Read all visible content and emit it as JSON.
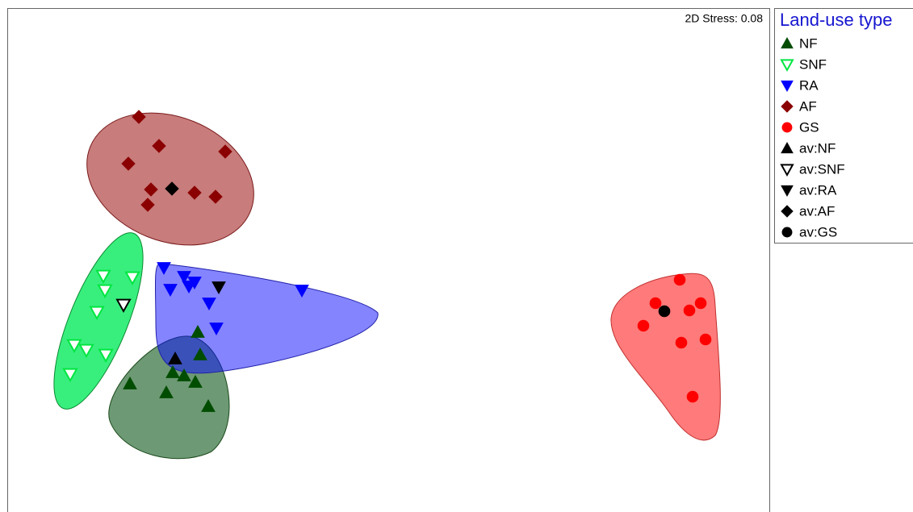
{
  "chart_data": {
    "type": "scatter",
    "stress_label": "2D Stress: 0.08",
    "legend_title": "Land-use type",
    "xlim": [
      0,
      944
    ],
    "ylim": [
      0,
      625
    ],
    "series": [
      {
        "name": "NF",
        "color": "#004d00",
        "marker": "triangle-up",
        "filled": true,
        "x": [
          236,
          239,
          205,
          219,
          233,
          152,
          197,
          249
        ],
        "y": [
          223,
          195,
          173,
          169,
          161,
          159,
          148,
          131
        ]
      },
      {
        "name": "SNF",
        "color": "#00e640",
        "marker": "triangle-down",
        "filled": false,
        "x": [
          119,
          155,
          121,
          111,
          83,
          98,
          122,
          78
        ],
        "y": [
          293,
          291,
          275,
          248,
          207,
          201,
          195,
          171
        ]
      },
      {
        "name": "RA",
        "color": "#0000ff",
        "marker": "triangle-down",
        "filled": true,
        "x": [
          194,
          219,
          232,
          225,
          202,
          365,
          250,
          259
        ],
        "y": [
          303,
          292,
          285,
          280,
          276,
          275,
          259,
          228
        ]
      },
      {
        "name": "AF",
        "color": "#8b0000",
        "marker": "diamond",
        "filled": true,
        "x": [
          163,
          188,
          270,
          150,
          178,
          232,
          258,
          174
        ],
        "y": [
          490,
          454,
          447,
          432,
          400,
          396,
          391,
          381
        ]
      },
      {
        "name": "GS",
        "color": "#ff0000",
        "marker": "circle",
        "filled": true,
        "x": [
          833,
          803,
          859,
          845,
          788,
          835,
          865,
          849
        ],
        "y": [
          288,
          259,
          259,
          250,
          231,
          210,
          214,
          143
        ]
      },
      {
        "name": "av:NF",
        "color": "#000000",
        "marker": "triangle-up",
        "filled": true,
        "x": [
          208
        ],
        "y": [
          190
        ]
      },
      {
        "name": "av:SNF",
        "color": "#000000",
        "marker": "triangle-down",
        "filled": false,
        "x": [
          144
        ],
        "y": [
          257
        ]
      },
      {
        "name": "av:RA",
        "color": "#000000",
        "marker": "triangle-down",
        "filled": true,
        "x": [
          262
        ],
        "y": [
          279
        ]
      },
      {
        "name": "av:AF",
        "color": "#000000",
        "marker": "diamond",
        "filled": true,
        "x": [
          204
        ],
        "y": [
          401
        ]
      },
      {
        "name": "av:GS",
        "color": "#000000",
        "marker": "circle",
        "filled": true,
        "x": [
          814
        ],
        "y": [
          249
        ]
      }
    ]
  }
}
